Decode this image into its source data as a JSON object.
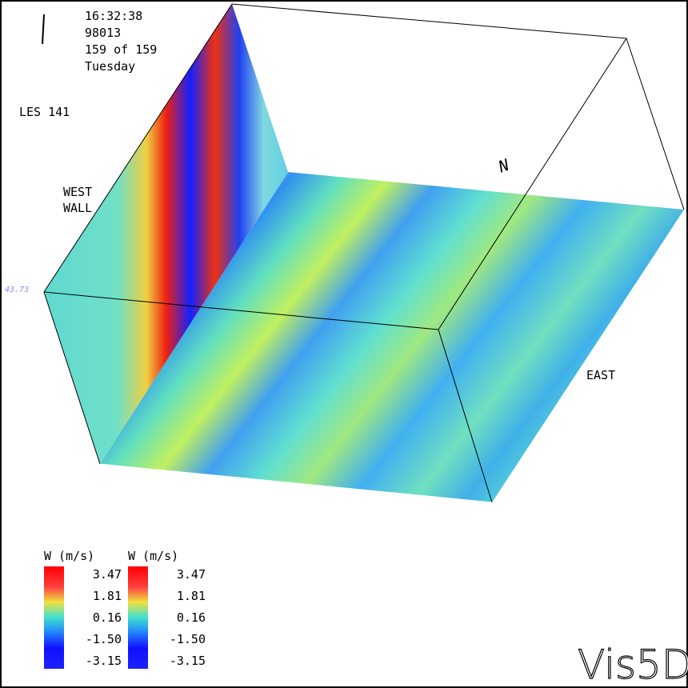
{
  "clock": {
    "time": "16:32:38",
    "date": "98013",
    "step": "159 of 159",
    "weekday": "Tuesday"
  },
  "dataset": "LES 141",
  "labels": {
    "west": "WEST",
    "wall": "WALL",
    "north": "N",
    "east": "EAST",
    "axis_value": "43.73"
  },
  "colorbars": [
    {
      "title": "W (m/s)",
      "ticks": [
        "3.47",
        "1.81",
        "0.16",
        "-1.50",
        "-3.15"
      ]
    },
    {
      "title": "W (m/s)",
      "ticks": [
        "3.47",
        "1.81",
        "0.16",
        "-1.50",
        "-3.15"
      ]
    }
  ],
  "logo": "Vis5D"
}
